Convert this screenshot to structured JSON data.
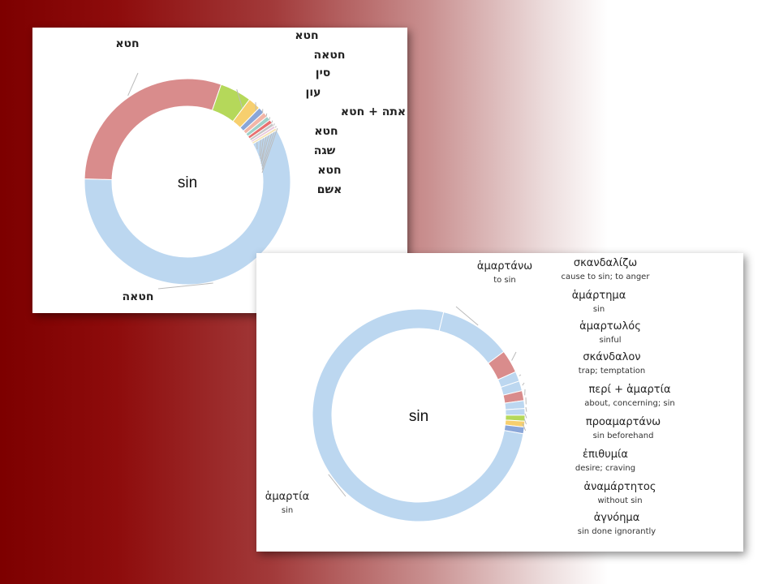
{
  "chart_data": [
    {
      "type": "donut",
      "center_label": "sin",
      "slices": [
        {
          "label": "חטאה",
          "gloss": "",
          "value": 59.0,
          "color": "#bcd7f0"
        },
        {
          "label": "חטא",
          "gloss": "",
          "value": 30.0,
          "color": "#d98c8c"
        },
        {
          "label": "חטא",
          "gloss": "",
          "value": 5.0,
          "color": "#b5d85a"
        },
        {
          "label": "חטאה",
          "gloss": "",
          "value": 2.0,
          "color": "#f7cf6e"
        },
        {
          "label": "סין",
          "gloss": "",
          "value": 1.0,
          "color": "#8aa6d8"
        },
        {
          "label": "עון",
          "gloss": "",
          "value": 0.8,
          "color": "#f2b6a8"
        },
        {
          "label": "אתה + חטא",
          "gloss": "",
          "value": 0.7,
          "color": "#9ed0c8"
        },
        {
          "label": "חטא",
          "gloss": "",
          "value": 0.6,
          "color": "#e87070"
        },
        {
          "label": "שגה",
          "gloss": "",
          "value": 0.5,
          "color": "#c6c6c6"
        },
        {
          "label": "חטא",
          "gloss": "",
          "value": 0.4,
          "color": "#e9c7dd"
        },
        {
          "label": "אשם",
          "gloss": "",
          "value": 0.4,
          "color": "#f5e3b5"
        }
      ]
    },
    {
      "type": "donut",
      "center_label": "sin",
      "slices": [
        {
          "label": "ἁμαρτία",
          "gloss": "sin",
          "value": 76.0,
          "color": "#bcd7f0"
        },
        {
          "label": "ἁμαρτάνω",
          "gloss": "to sin",
          "value": 11.0,
          "color": "#bcd7f0"
        },
        {
          "label": "σκανδαλίζω",
          "gloss": "cause to sin; to anger",
          "value": 3.5,
          "color": "#d98c8c"
        },
        {
          "label": "ἁμάρτημα",
          "gloss": "sin",
          "value": 1.5,
          "color": "#bcd7f0"
        },
        {
          "label": "ἁμαρτωλός",
          "gloss": "sinful",
          "value": 1.5,
          "color": "#bcd7f0"
        },
        {
          "label": "σκάνδαλον",
          "gloss": "trap; temptation",
          "value": 1.5,
          "color": "#d98c8c"
        },
        {
          "label": "περί + ἁμαρτία",
          "gloss": "about, concerning; sin",
          "value": 1.2,
          "color": "#bcd7f0"
        },
        {
          "label": "προαμαρτάνω",
          "gloss": "sin beforehand",
          "value": 1.0,
          "color": "#bcd7f0"
        },
        {
          "label": "ἐπιθυμία",
          "gloss": "desire; craving",
          "value": 0.9,
          "color": "#b5d85a"
        },
        {
          "label": "ἀναμάρτητος",
          "gloss": "without sin",
          "value": 0.9,
          "color": "#f7cf6e"
        },
        {
          "label": "ἀγνόημα",
          "gloss": "sin done ignorantly",
          "value": 1.0,
          "color": "#8aa6d8"
        }
      ]
    }
  ]
}
